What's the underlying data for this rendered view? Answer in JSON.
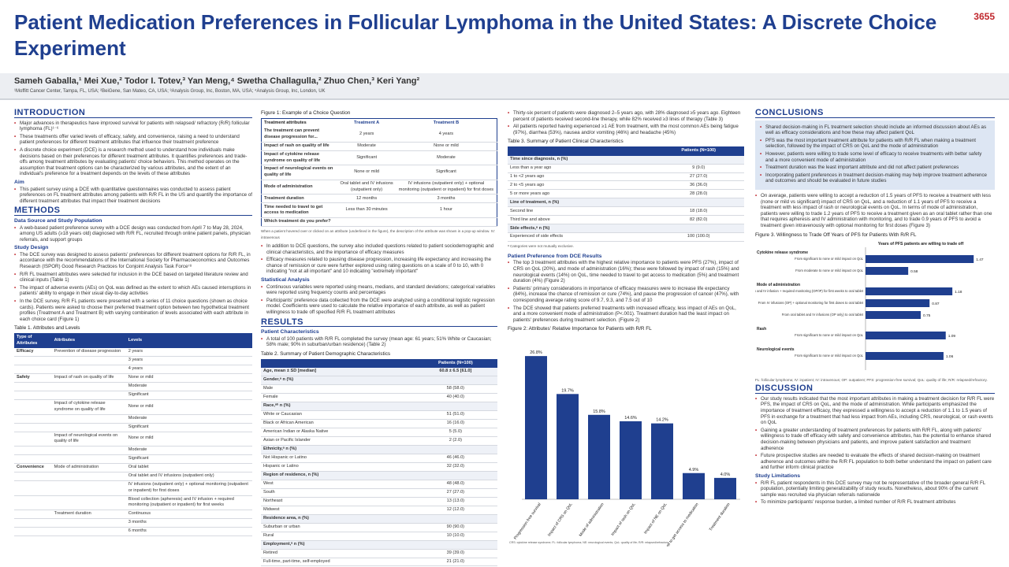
{
  "poster": {
    "title": "Patient Medication Preferences in Follicular Lymphoma in the United States: A Discrete Choice Experiment",
    "poster_number": "3655",
    "authors": "Sameh Gaballa,¹ Mei Xue,² Todor I. Totev,³ Yan Meng,⁴ Swetha Challagulla,² Zhuo Chen,³ Keri Yang²",
    "affiliations": "¹Moffitt Cancer Center, Tampa, FL, USA; ²BeiGene, San Mateo, CA, USA; ³Analysis Group, Inc, Boston, MA, USA; ⁴Analysis Group, Inc, London, UK"
  },
  "col1": {
    "intro_heading": "INTRODUCTION",
    "intro_bullets": [
      "Major advances in therapeutics have improved survival for patients with relapsed/ refractory (R/R) follicular lymphoma (FL)¹⁻⁶",
      "These treatments offer varied levels of efficacy, safety, and convenience, raising a need to understand patient preferences for different treatment attributes that influence their treatment preference",
      "A discrete choice experiment (DCE) is a research method used to understand how individuals make decisions based on their preferences for different treatment attributes. It quantifies preferences and trade-offs among treatment attributes by evaluating patients' choice behaviors. This method operates on the assumption that treatment options can be characterized by various attributes, and the extent of an individual's preference for a treatment depends on the levels of these attributes"
    ],
    "aim_heading": "Aim",
    "aim_bullets": [
      "This patient survey using a DCE with quantitative questionnaires was conducted to assess patient preferences on FL treatment attributes among patients with R/R FL in the US and quantify the importance of different treatment attributes that impact their treatment decisions"
    ],
    "methods_heading": "METHODS",
    "ds_heading": "Data Source and Study Population",
    "ds_bullets": [
      "A web-based patient preference survey with a DCE design was conducted from April 7 to May 28, 2024, among US adults (≥18 years old) diagnosed with R/R FL, recruited through online patient panels, physician referrals, and support groups"
    ],
    "sd_heading": "Study Design",
    "sd_bullets": [
      "The DCE survey was designed to assess patients' preferences for different treatment options for R/R FL, in accordance with the recommendations of the International Society for Pharmacoeconomics and Outcomes Research (ISPOR) Good Research Practices for Conjoint Analysis Task Force⁷⁸",
      "R/R FL treatment attributes were selected for inclusion in the DCE based on targeted literature review and clinical inputs (Table 1)",
      "The impact of adverse events (AEs) on QoL was defined as the extent to which AEs caused interruptions in patients' ability to engage in their usual day-to-day activities",
      "In the DCE survey, R/R FL patients were presented with a series of 11 choice questions (shown as choice cards). Patients were asked to choose their preferred treatment option between two hypothetical treatment profiles (Treatment A and Treatment B) with varying combination of levels associated with each attribute in each choice card (Figure 1)"
    ],
    "t1_caption": "Table 1. Attributes and Levels",
    "t1_headers": [
      "Type of Attributes",
      "Attributes",
      "Levels"
    ],
    "t1_rows": [
      [
        "Efficacy",
        "Prevention of disease progression",
        "2 years"
      ],
      [
        "",
        "",
        "3 years"
      ],
      [
        "",
        "",
        "4 years"
      ],
      [
        "Safety",
        "Impact of rash on quality of life",
        "None or mild"
      ],
      [
        "",
        "",
        "Moderate"
      ],
      [
        "",
        "",
        "Significant"
      ],
      [
        "",
        "Impact of cytokine release syndrome on quality of life",
        "None or mild"
      ],
      [
        "",
        "",
        "Moderate"
      ],
      [
        "",
        "",
        "Significant"
      ],
      [
        "",
        "Impact of neurological events on quality of life",
        "None or mild"
      ],
      [
        "",
        "",
        "Moderate"
      ],
      [
        "",
        "",
        "Significant"
      ],
      [
        "Convenience",
        "Mode of administration",
        "Oral tablet"
      ],
      [
        "",
        "",
        "Oral tablet and IV infusions (outpatient only)"
      ],
      [
        "",
        "",
        "IV infusions (outpatient only) + optional monitoring (outpatient or inpatient) for first doses"
      ],
      [
        "",
        "",
        "Blood collection (apheresis) and IV infusion + required monitoring (outpatient or inpatient) for first weeks"
      ],
      [
        "",
        "Treatment duration",
        "Continuous"
      ],
      [
        "",
        "",
        "3 months"
      ],
      [
        "",
        "",
        "6 months"
      ]
    ]
  },
  "col2": {
    "fig1_caption": "Figure 1: Example of a Choice Question",
    "fig1_headers": [
      "Treatment attributes",
      "Treatment A",
      "Treatment B"
    ],
    "fig1_rows": [
      [
        "The treatment can prevent disease progression for...",
        "2 years",
        "4 years"
      ],
      [
        "Impact of rash on quality of life",
        "Moderate",
        "None or mild"
      ],
      [
        "Impact of cytokine release syndrome on quality of life",
        "Significant",
        "Moderate"
      ],
      [
        "Impact of neurological events on quality of life",
        "None or mild",
        "Significant"
      ],
      [
        "Mode of administration",
        "Oral tablet and IV infusions (outpatient only)",
        "IV infusions (outpatient only) + optional monitoring (outpatient or inpatient) for first doses"
      ],
      [
        "Treatment duration",
        "12 months",
        "3 months"
      ],
      [
        "Time needed to travel to get access to medication",
        "Less than 30 minutes",
        "1 hour"
      ],
      [
        "Which treatment do you prefer?",
        "",
        ""
      ]
    ],
    "fig1_note": "When a patient hovered over or clicked on an attribute (underlined in the figure), the description of the attribute was shown in a pop-up window. IV: intravenous",
    "m_bullets": [
      "In addition to DCE questions, the survey also included questions related to patient sociodemographic and clinical characteristics, and the importance of efficacy measures",
      "Efficacy measures related to pausing disease progression, increasing life expectancy and increasing the chance of remission or cure were further explored using rating questions on a scale of 0 to 10, with 0 indicating \"not at all important\" and 10 indicating \"extremely important\""
    ],
    "sa_heading": "Statistical Analysis",
    "sa_bullets": [
      "Continuous variables were reported using means, medians, and standard deviations; categorical variables were reported using frequency counts and percentages",
      "Participants' preference data collected from the DCE were analyzed using a conditional logistic regression model. Coefficients were used to calculate the relative importance of each attribute, as well as patient willingness to trade off specified R/R FL treatment attributes"
    ],
    "results_heading": "RESULTS",
    "pc_heading": "Patient Characteristics",
    "pc_bullets": [
      "A total of 100 patients with R/R FL completed the survey (mean age: 61 years; 51% White or Caucasian; 58% male; 90% in suburban/urban residence) (Table 2)"
    ],
    "t2_caption": "Table 2. Summary of Patient Demographic Characteristics",
    "t2_header": "Patients (N=100)",
    "t2_rows": [
      [
        "Age, mean ± SD [median]",
        "60.8 ± 6.5 [61.0]",
        "g"
      ],
      [
        "Gender,ᵃ n (%)",
        "",
        "g"
      ],
      [
        "Male",
        "58 (58.0)",
        ""
      ],
      [
        "Female",
        "40 (40.0)",
        ""
      ],
      [
        "Race,ᵃᵇ n (%)",
        "",
        "g"
      ],
      [
        "White or Caucasian",
        "51 (51.0)",
        ""
      ],
      [
        "Black or African American",
        "16 (16.0)",
        ""
      ],
      [
        "American Indian or Alaska Native",
        "5 (5.0)",
        ""
      ],
      [
        "Asian or Pacific Islander",
        "2 (2.0)",
        ""
      ],
      [
        "Ethnicity,ᵃ n (%)",
        "",
        "g"
      ],
      [
        "Not Hispanic or Latino",
        "46 (46.0)",
        ""
      ],
      [
        "Hispanic or Latino",
        "32 (32.0)",
        ""
      ],
      [
        "Region of residence, n (%)",
        "",
        "g"
      ],
      [
        "West",
        "48 (48.0)",
        ""
      ],
      [
        "South",
        "27 (27.0)",
        ""
      ],
      [
        "Northeast",
        "13 (13.0)",
        ""
      ],
      [
        "Midwest",
        "12 (12.0)",
        ""
      ],
      [
        "Residence area, n (%)",
        "",
        "g"
      ],
      [
        "Suburban or urban",
        "90 (90.0)",
        ""
      ],
      [
        "Rural",
        "10 (10.0)",
        ""
      ],
      [
        "Employment,ᵃ n (%)",
        "",
        "g"
      ],
      [
        "Retired",
        "39 (39.0)",
        ""
      ],
      [
        "Full-time, part-time, self-employed",
        "21 (21.0)",
        ""
      ],
      [
        "Unemployed",
        "14 (14.0)",
        ""
      ],
      [
        "Otherᶜ",
        "20 (20.0)",
        ""
      ]
    ]
  },
  "col3": {
    "top_bullets": [
      "Thirty-six percent of patients were diagnosed 2–5 years ago, with 28% diagnosed ≥5 years ago. Eighteen percent of patients received second-line therapy, while 82% received ≥3 lines of therapy (Table 3)",
      "All patients reported having experienced ≥1 AE from treatment, with the most common AEs being fatigue (97%), diarrhea (53%), nausea and/or vomiting (46%) and headache (45%)"
    ],
    "t3_caption": "Table 3. Summary of Patient Clinical Characteristics",
    "t3_header": "Patients (N=100)",
    "t3_rows": [
      [
        "Time since diagnosis, n (%)",
        "",
        "g"
      ],
      [
        "Less than a year ago",
        "9 (9.0)",
        ""
      ],
      [
        "1 to <2 years ago",
        "27 (27.0)",
        ""
      ],
      [
        "2 to <5 years ago",
        "36 (36.0)",
        ""
      ],
      [
        "5 or more years ago",
        "28 (28.0)",
        ""
      ],
      [
        "Line of treatment, n (%)",
        "",
        "g"
      ],
      [
        "Second line",
        "18 (18.0)",
        ""
      ],
      [
        "Third line and above",
        "82 (82.0)",
        ""
      ],
      [
        "Side effects,ᵃ n (%)",
        "",
        "g"
      ],
      [
        "Experienced of side effects",
        "100 (100.0)",
        ""
      ]
    ],
    "t3_note": "ᵃ Categories were not mutually exclusive.",
    "pref_heading": "Patient Preference from DCE Results",
    "pref_bullets": [
      "The top 3 treatment attributes with the highest relative importance to patients were PFS (27%), impact of CRS on QoL (20%), and mode of administration (16%); these were followed by impact of rash (15%) and neurological events (14%) on QoL, time needed to travel to get access to medication (5%) and treatment duration (4%) (Figure 2)",
      "Patients' primary considerations in importance of efficacy measures were to increase life expectancy (84%), increase the chance of remission or cure (74%), and pause the progression of cancer (47%), with corresponding average rating score of 9.7, 9.3, and 7.5 out of 10",
      "The DCE showed that patients preferred treatments with increased efficacy, less impact of AEs on QoL, and a more convenient mode of administration (P<.001). Treatment duration had the least impact on patients' preferences during treatment selection. (Figure 2)"
    ],
    "fig2_caption": "Figure 2: Attributes' Relative Importance for Patients with R/R FL",
    "fig2_footnote": "CRS: cytokine release syndrome; FL: follicular lymphoma; NE: neurological events; QoL: quality of life; R/R: relapsed/refractory."
  },
  "col4": {
    "concl_heading": "CONCLUSIONS",
    "concl_bullets": [
      "Shared decision-making in FL treatment selection should include an informed discussion about AEs as well as efficacy considerations and how these may affect patient QoL",
      "PFS was the most important treatment attribute for patients with R/R FL when making a treatment selection, followed by the impact of CRS on QoL and the mode of administration",
      "However, patients were willing to trade some level of efficacy to receive treatments with better safety and a more convenient mode of administration",
      "Treatment duration was the least important attribute and did not affect patient preferences",
      "Incorporating patient preferences in treatment decision-making may help improve treatment adherence and outcomes and should be evaluated in future studies"
    ],
    "wtp_bullets": [
      "On average, patients were willing to accept a reduction of 1.5 years of PFS to receive a treatment with less (none or mild vs significant) impact of CRS on QoL, and a reduction of 1.1 years of PFS to receive a treatment with less impact of rash or neurological events on QoL. In terms of mode of administration, patients were willing to trade 1.2 years of PFS to receive a treatment given as an oral tablet rather than one that requires apheresis and IV administration with monitoring, and to trade 0.9 years of PFS to avoid a treatment given intravenously with optional monitoring for first doses (Figure 3)"
    ],
    "fig3_caption": "Figure 3. Willingness to Trade Off Years of PFS for Patients With R/R FL",
    "fig3_footnote": "FL: follicular lymphoma; IV: inpatient; IV: intravenous; OP: outpatient; PFS: progression-free survival; QoL: quality of life; R/R: relapsed/refractory.",
    "disc_heading": "DISCUSSION",
    "disc_bullets": [
      "Our study results indicated that the most important attributes in making a treatment decision for R/R FL were PFS, the impact of CRS on QoL, and the mode of administration. While participants emphasized the importance of treatment efficacy, they expressed a willingness to accept a reduction of 1.1 to 1.5 years of PFS in exchange for a treatment that had less impact from AEs, including CRS, neurological, or rash events on QoL",
      "Gaining a greater understanding of treatment preferences for patients with R/R FL, along with patients' willingness to trade off efficacy with safety and convenience attributes, has the potential to enhance shared decision-making between physicians and patients, and improve patient satisfaction and treatment adherence",
      "Future prospective studies are needed to evaluate the effects of shared decision-making on treatment adherence and outcomes within the R/R FL population to both better understand the impact on patient care and further inform clinical practice"
    ],
    "lim_heading": "Study Limitations",
    "lim_bullets": [
      "R/R FL patient respondents in this DCE survey may not be representative of the broader general R/R FL population, potentially limiting generalizability of study results. Nonetheless, about 90% of the current sample was recruited via physician referrals nationwide",
      "To minimize participants' response burden, a limited number of R/R FL treatment attributes"
    ]
  },
  "chart_data": [
    {
      "type": "bar",
      "categories": [
        "Progression-free survival",
        "Impact of CRS on QoL",
        "Mode of administration",
        "Impact of rash on QoL",
        "Impact of NE on QoL",
        "Time needed to travel to get access to medication",
        "Treatment duration"
      ],
      "values": [
        26.8,
        19.7,
        15.8,
        14.6,
        14.2,
        4.9,
        4.0
      ],
      "value_labels": [
        "26.8%",
        "19.7%",
        "15.8%",
        "14.6%",
        "14.2%",
        "4.9%",
        "4.0%"
      ],
      "ylim": [
        0,
        28
      ],
      "color": "#1f3f8f"
    },
    {
      "type": "bar",
      "orientation": "horizontal",
      "title": "Years of PFS patients are willing to trade off",
      "groups": [
        {
          "name": "Cytokine release syndrome",
          "items": [
            {
              "label": "From significant to none or mild impact on QoL",
              "value": 1.47
            },
            {
              "label": "From moderate to none or mild impact on QoL",
              "value": 0.58
            }
          ]
        },
        {
          "name": "Mode of administration",
          "items": [
            {
              "label": "From blood collection and IV infusion + required monitoring (OP/IP) for first weeks to oral tablet",
              "value": 1.18
            },
            {
              "label": "From IV infusions (OP) + optional monitoring for first doses to oral tablet",
              "value": 0.87
            },
            {
              "label": "From oral tablet and IV infusions (OP only) to oral tablet",
              "value": 0.75
            }
          ]
        },
        {
          "name": "Rash",
          "items": [
            {
              "label": "From significant to none or mild impact on QoL",
              "value": 1.09
            }
          ]
        },
        {
          "name": "Neurological events",
          "items": [
            {
              "label": "From significant to none or mild impact on QoL",
              "value": 1.06
            }
          ]
        }
      ],
      "xlim": [
        0,
        1.5
      ],
      "color": "#1f3f8f"
    }
  ]
}
